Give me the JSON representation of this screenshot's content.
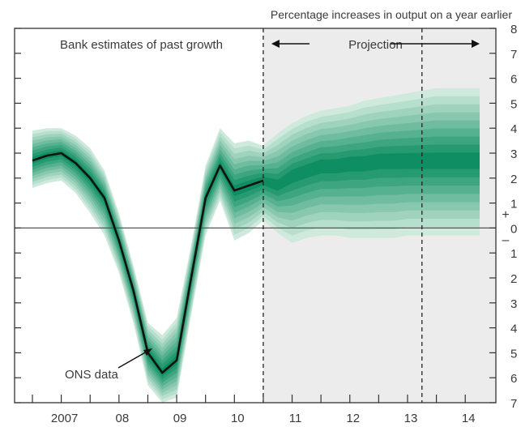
{
  "chart_data": {
    "type": "area",
    "title": "",
    "units_label": "Percentage increases in output on a year earlier",
    "ylim": [
      -7,
      8
    ],
    "y_ticks_right": [
      {
        "value": 8,
        "label": "8"
      },
      {
        "value": 7,
        "label": "7"
      },
      {
        "value": 6,
        "label": "6"
      },
      {
        "value": 5,
        "label": "5"
      },
      {
        "value": 4,
        "label": "4"
      },
      {
        "value": 3,
        "label": "3"
      },
      {
        "value": 2,
        "label": "2"
      },
      {
        "value": 1,
        "label": "1"
      },
      {
        "value": 0,
        "label": "0"
      },
      {
        "value": -1,
        "label": "1"
      },
      {
        "value": -2,
        "label": "2"
      },
      {
        "value": -3,
        "label": "3"
      },
      {
        "value": -4,
        "label": "4"
      },
      {
        "value": -5,
        "label": "5"
      },
      {
        "value": -6,
        "label": "6"
      },
      {
        "value": -7,
        "label": "7"
      }
    ],
    "sign_labels": {
      "plus": "+",
      "minus": "–"
    },
    "xlim": [
      2006.5,
      2014.5
    ],
    "x_tick_positions": [
      2006.5,
      2007,
      2007.5,
      2008,
      2008.5,
      2009,
      2009.5,
      2010,
      2010.5,
      2011,
      2011.5,
      2012,
      2012.5,
      2013,
      2013.5,
      2014
    ],
    "x_labels": [
      {
        "x": 2007.0,
        "label": "2007"
      },
      {
        "x": 2008.0,
        "label": "08"
      },
      {
        "x": 2009.0,
        "label": "09"
      },
      {
        "x": 2010.0,
        "label": "10"
      },
      {
        "x": 2011.0,
        "label": "11"
      },
      {
        "x": 2012.0,
        "label": "12"
      },
      {
        "x": 2013.0,
        "label": "13"
      },
      {
        "x": 2014.0,
        "label": "14"
      }
    ],
    "projection_start": 2010.5,
    "second_marker": 2013.25,
    "annotations": {
      "past": "Bank estimates of past growth",
      "projection": "Projection",
      "ons": "ONS data"
    },
    "series": [
      {
        "name": "ONS data",
        "x": [
          2006.5,
          2006.75,
          2007.0,
          2007.25,
          2007.5,
          2007.75,
          2008.0,
          2008.25,
          2008.5,
          2008.75,
          2009.0,
          2009.25,
          2009.5,
          2009.75,
          2010.0,
          2010.25,
          2010.5
        ],
        "values": [
          2.7,
          2.9,
          3.0,
          2.6,
          2.0,
          1.2,
          -0.5,
          -2.5,
          -5.0,
          -5.8,
          -5.3,
          -2.0,
          1.2,
          2.5,
          1.5,
          1.7,
          1.9
        ]
      }
    ],
    "fan": {
      "x": [
        2006.5,
        2006.75,
        2007.0,
        2007.25,
        2007.5,
        2007.75,
        2008.0,
        2008.25,
        2008.5,
        2008.75,
        2009.0,
        2009.25,
        2009.5,
        2009.75,
        2010.0,
        2010.25,
        2010.5,
        2010.75,
        2011.0,
        2011.25,
        2011.5,
        2011.75,
        2012.0,
        2012.25,
        2012.5,
        2012.75,
        2013.0,
        2013.25,
        2013.5,
        2013.75,
        2014.0,
        2014.25
      ],
      "central": [
        2.7,
        2.9,
        3.0,
        2.6,
        2.0,
        1.2,
        -0.5,
        -2.5,
        -5.0,
        -5.8,
        -5.3,
        -2.0,
        1.2,
        2.5,
        1.5,
        1.7,
        1.9,
        1.7,
        2.1,
        2.3,
        2.5,
        2.5,
        2.6,
        2.6,
        2.7,
        2.7,
        2.7,
        2.7,
        2.7,
        2.7,
        2.7,
        2.7
      ],
      "upper_90": [
        3.9,
        4.0,
        4.0,
        3.7,
        3.2,
        2.3,
        0.6,
        -1.5,
        -3.8,
        -4.3,
        -3.6,
        -0.7,
        2.5,
        4.0,
        3.4,
        3.5,
        3.3,
        3.8,
        4.2,
        4.5,
        4.7,
        4.8,
        4.9,
        5.1,
        5.2,
        5.3,
        5.4,
        5.5,
        5.6,
        5.6,
        5.6,
        5.6
      ],
      "lower_90": [
        1.6,
        1.8,
        1.9,
        1.4,
        0.6,
        -0.3,
        -1.8,
        -3.8,
        -6.3,
        -7.0,
        -6.8,
        -3.5,
        -0.3,
        1.1,
        -0.5,
        -0.2,
        0.3,
        -0.2,
        -0.6,
        -0.4,
        -0.3,
        -0.3,
        -0.4,
        -0.4,
        -0.4,
        -0.4,
        -0.3,
        -0.3,
        -0.3,
        -0.3,
        -0.3,
        -0.3
      ]
    },
    "colors": {
      "fan_darkest": "#0e8e62",
      "fan_lightest": "#cfeadd",
      "projection_bg": "#ececec",
      "line": "#111111",
      "axis": "#333333"
    }
  }
}
